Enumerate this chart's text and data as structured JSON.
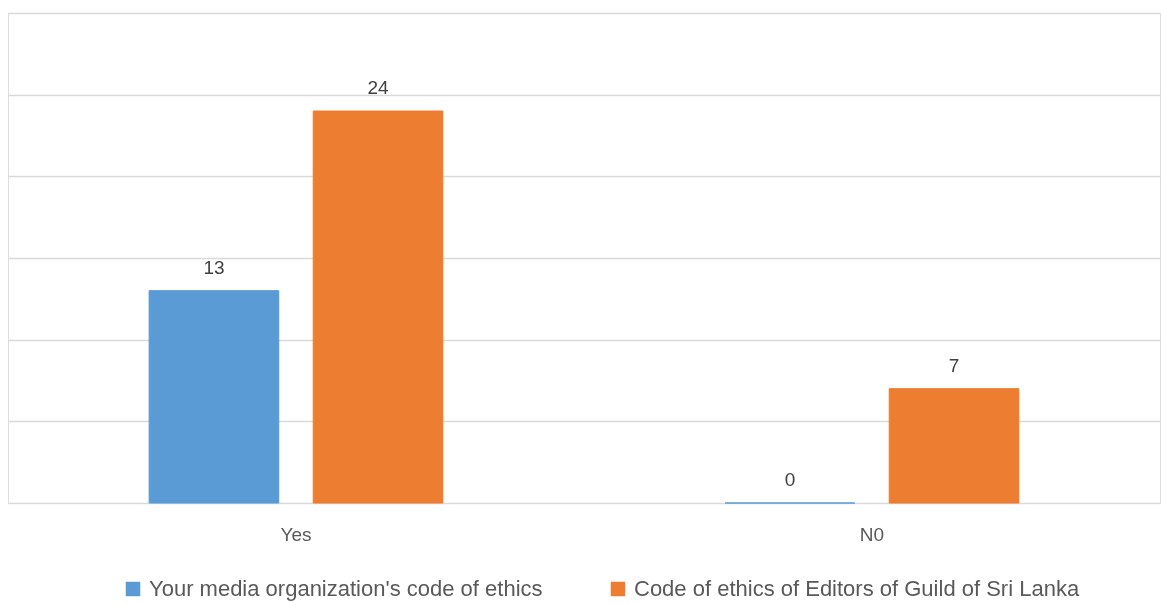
{
  "chart_data": {
    "type": "bar",
    "categories": [
      "Yes",
      "N0"
    ],
    "series": [
      {
        "name": "Your media organization's code of ethics",
        "color": "#5b9bd5",
        "values": [
          13,
          0
        ]
      },
      {
        "name": "Code of ethics of Editors of Guild of Sri Lanka",
        "color": "#ed7d31",
        "values": [
          24,
          7
        ]
      }
    ],
    "ylim": [
      0,
      30
    ],
    "yticks": [
      {
        "value": 0,
        "label": null
      },
      {
        "value": 5,
        "label": null
      },
      {
        "value": 10,
        "label": null
      },
      {
        "value": 15,
        "label": null
      },
      {
        "value": 20,
        "label": null
      },
      {
        "value": 25,
        "label": null
      },
      {
        "value": 30,
        "label": null
      }
    ],
    "grid": "y",
    "legend": "bottom",
    "data_labels": true,
    "tick_labels": "x"
  }
}
